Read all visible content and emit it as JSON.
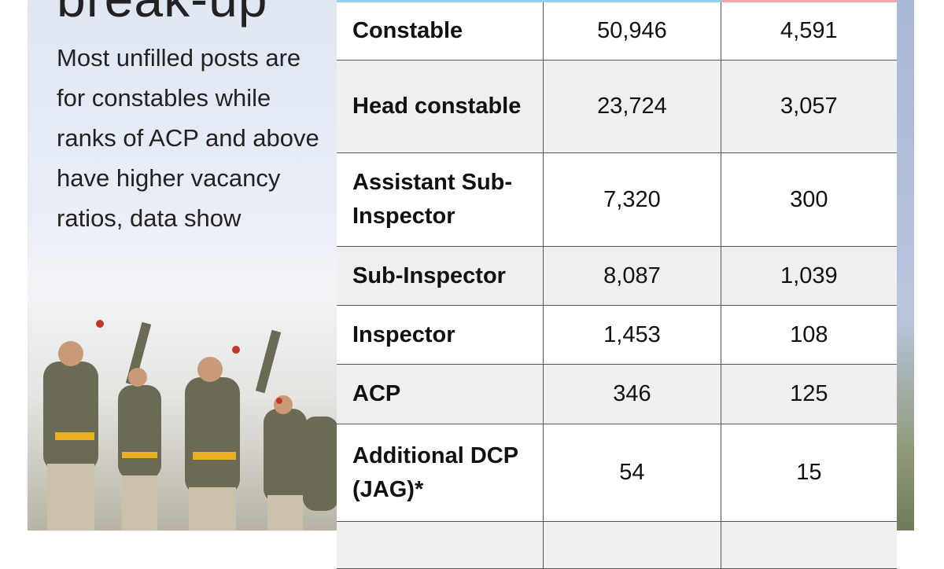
{
  "headline": "break-up",
  "description": "Most unfilled posts are for constables while ranks of ACP and above have higher vacancy ratios, data show",
  "colors": {
    "header_left": "#8fd3ee",
    "header_right": "#f2a6a6",
    "row_alt": "#efefef"
  },
  "table": {
    "rows": [
      {
        "rank": "Constable",
        "col1": "50,946",
        "col2": "4,591"
      },
      {
        "rank": "Head constable",
        "col1": "23,724",
        "col2": "3,057"
      },
      {
        "rank": "Assistant Sub-Inspector",
        "col1": "7,320",
        "col2": "300"
      },
      {
        "rank": "Sub-Inspector",
        "col1": "8,087",
        "col2": "1,039"
      },
      {
        "rank": "Inspector",
        "col1": "1,453",
        "col2": "108"
      },
      {
        "rank": "ACP",
        "col1": "346",
        "col2": "125"
      },
      {
        "rank": "Additional DCP (JAG)*",
        "col1": "54",
        "col2": "15"
      },
      {
        "rank": "",
        "col1": "",
        "col2": ""
      }
    ]
  }
}
